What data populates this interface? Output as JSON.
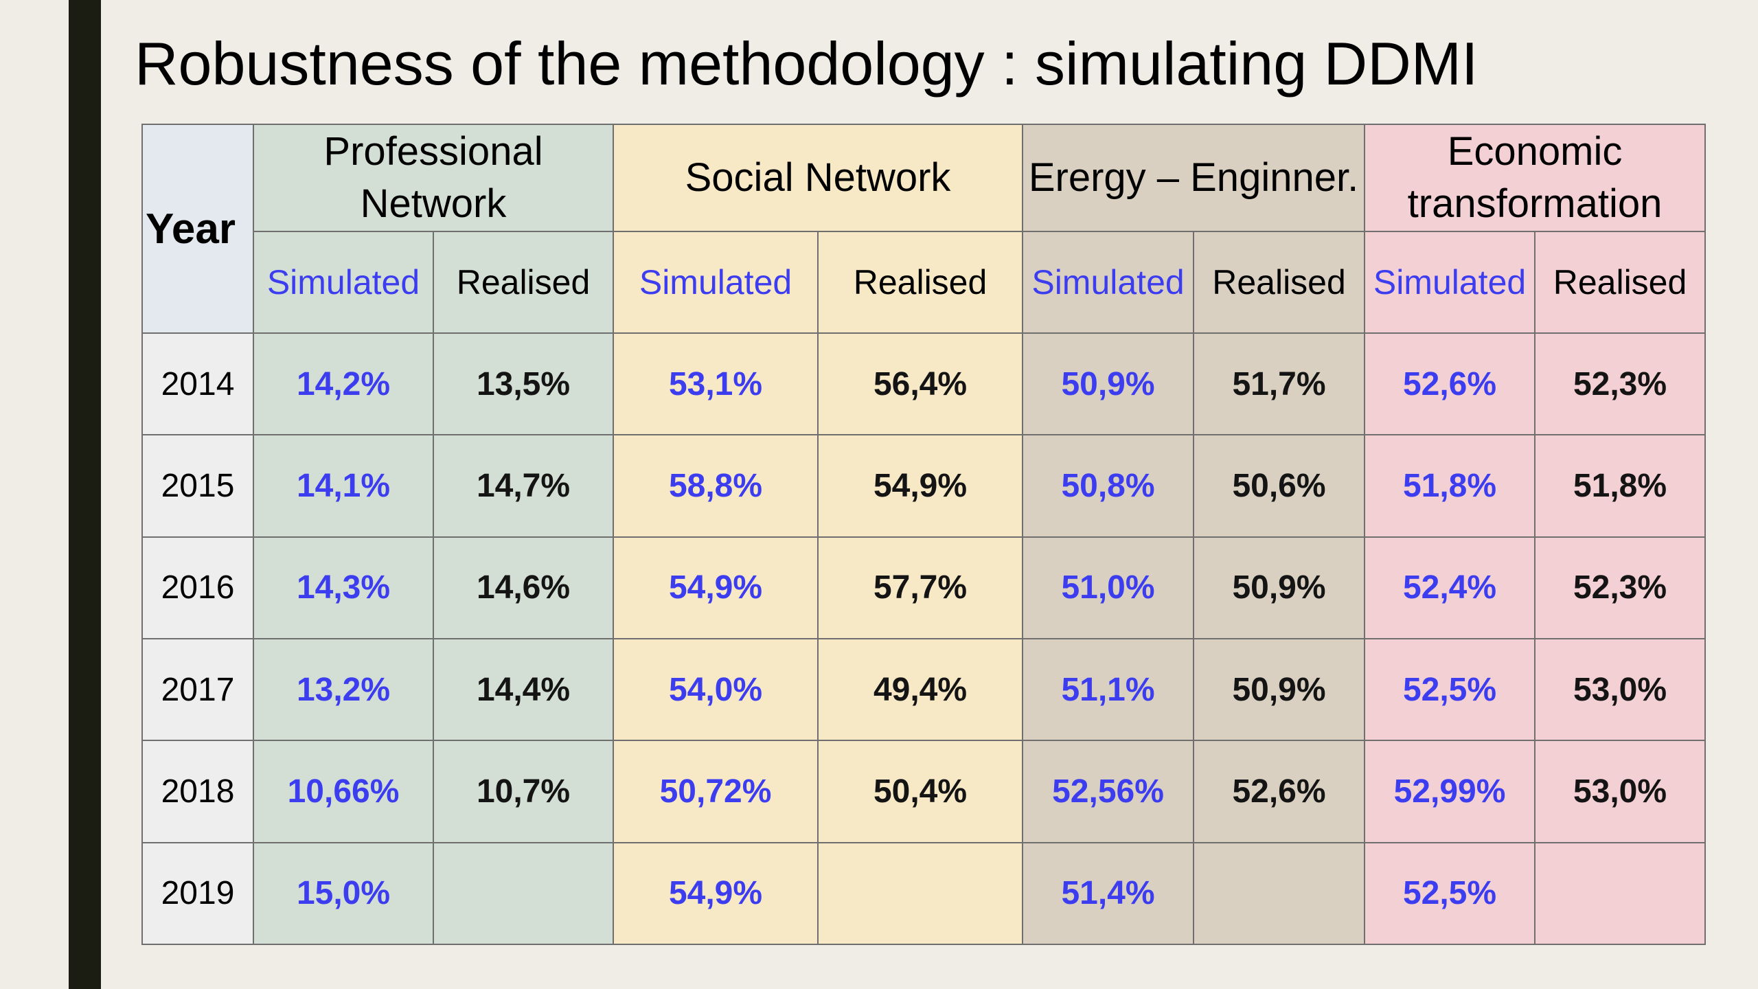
{
  "title": "Robustness of the methodology : simulating DDMI",
  "table": {
    "year_header": "Year",
    "groups": [
      {
        "key": "prof",
        "label_lines": [
          "Professional",
          "Network"
        ],
        "color": "#d3dfd4"
      },
      {
        "key": "soc",
        "label_lines": [
          "Social Network"
        ],
        "color": "#f7e8c6"
      },
      {
        "key": "eng",
        "label_lines": [
          "Erergy – Enginner."
        ],
        "color": "#d9d0c2"
      },
      {
        "key": "eco",
        "label_lines": [
          "Economic",
          "transformation"
        ],
        "color": "#f3d0d4"
      }
    ],
    "sub_headers": {
      "simulated": "Simulated",
      "realised": "Realised"
    },
    "rows": [
      {
        "year": "2014",
        "cells": [
          [
            "14,2%",
            "13,5%"
          ],
          [
            "53,1%",
            "56,4%"
          ],
          [
            "50,9%",
            "51,7%"
          ],
          [
            "52,6%",
            "52,3%"
          ]
        ]
      },
      {
        "year": "2015",
        "cells": [
          [
            "14,1%",
            "14,7%"
          ],
          [
            "58,8%",
            "54,9%"
          ],
          [
            "50,8%",
            "50,6%"
          ],
          [
            "51,8%",
            "51,8%"
          ]
        ]
      },
      {
        "year": "2016",
        "cells": [
          [
            "14,3%",
            "14,6%"
          ],
          [
            "54,9%",
            "57,7%"
          ],
          [
            "51,0%",
            "50,9%"
          ],
          [
            "52,4%",
            "52,3%"
          ]
        ]
      },
      {
        "year": "2017",
        "cells": [
          [
            "13,2%",
            "14,4%"
          ],
          [
            "54,0%",
            "49,4%"
          ],
          [
            "51,1%",
            "50,9%"
          ],
          [
            "52,5%",
            "53,0%"
          ]
        ]
      },
      {
        "year": "2018",
        "cells": [
          [
            "10,66%",
            "10,7%"
          ],
          [
            "50,72%",
            "50,4%"
          ],
          [
            "52,56%",
            "52,6%"
          ],
          [
            "52,99%",
            "53,0%"
          ]
        ]
      },
      {
        "year": "2019",
        "cells": [
          [
            "15,0%",
            ""
          ],
          [
            "54,9%",
            ""
          ],
          [
            "51,4%",
            ""
          ],
          [
            "52,5%",
            ""
          ]
        ]
      }
    ]
  },
  "colors": {
    "simulated_text": "#3d3df0",
    "realised_text": "#141414",
    "year_header_bg": "#e3e9ef",
    "year_cell_bg": "#eeeeee",
    "side_bar": "#1b1c12",
    "slide_bg": "#efede6"
  }
}
